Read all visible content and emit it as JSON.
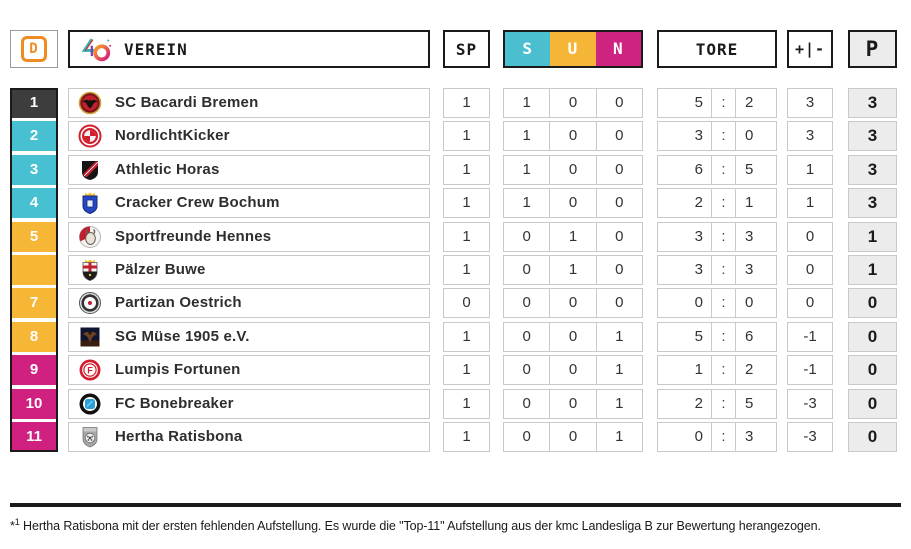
{
  "header": {
    "d_label": "D",
    "verein_label": "VEREIN",
    "sp_label": "SP",
    "s_label": "S",
    "u_label": "U",
    "n_label": "N",
    "tore_label": "TORE",
    "diff_label": "+|-",
    "p_label": "P"
  },
  "colors": {
    "rank_dark": "#3d3d3d",
    "rank_cyan": "#47c1d2",
    "rank_yellow": "#f6b636",
    "rank_magenta": "#d02080",
    "header_s": "#4bbfcf",
    "header_u": "#f5b637",
    "header_n": "#ce2380",
    "accent_orange": "#ee8b22",
    "points_bg": "#ececec"
  },
  "rows": [
    {
      "rank": "1",
      "tier": "dark",
      "club": "SC Bacardi Bremen",
      "icon": "bacardi-bat-crest",
      "sp": "1",
      "s": "1",
      "u": "0",
      "n": "0",
      "gf": "5",
      "ga": "2",
      "diff": "3",
      "points": "3"
    },
    {
      "rank": "2",
      "tier": "cyan",
      "club": "NordlichtKicker",
      "icon": "red-white-roundel",
      "sp": "1",
      "s": "1",
      "u": "0",
      "n": "0",
      "gf": "3",
      "ga": "0",
      "diff": "3",
      "points": "3"
    },
    {
      "rank": "3",
      "tier": "cyan",
      "club": "Athletic Horas",
      "icon": "black-red-shield",
      "sp": "1",
      "s": "1",
      "u": "0",
      "n": "0",
      "gf": "6",
      "ga": "5",
      "diff": "1",
      "points": "3"
    },
    {
      "rank": "4",
      "tier": "cyan",
      "club": "Cracker Crew Bochum",
      "icon": "blue-crown-shield",
      "sp": "1",
      "s": "1",
      "u": "0",
      "n": "0",
      "gf": "2",
      "ga": "1",
      "diff": "1",
      "points": "3"
    },
    {
      "rank": "5",
      "tier": "yellow",
      "club": "Sportfreunde Hennes",
      "icon": "goat-roundel",
      "sp": "1",
      "s": "0",
      "u": "1",
      "n": "0",
      "gf": "3",
      "ga": "3",
      "diff": "0",
      "points": "1"
    },
    {
      "rank": "",
      "tier": "yellow",
      "club": "Pälzer Buwe",
      "icon": "red-cross-shield",
      "sp": "1",
      "s": "0",
      "u": "1",
      "n": "0",
      "gf": "3",
      "ga": "3",
      "diff": "0",
      "points": "1"
    },
    {
      "rank": "7",
      "tier": "yellow",
      "club": "Partizan Oestrich",
      "icon": "black-white-roundel",
      "sp": "0",
      "s": "0",
      "u": "0",
      "n": "0",
      "gf": "0",
      "ga": "0",
      "diff": "0",
      "points": "0"
    },
    {
      "rank": "8",
      "tier": "yellow",
      "club": "SG Müse 1905 e.V.",
      "icon": "dark-moth-square",
      "sp": "1",
      "s": "0",
      "u": "0",
      "n": "1",
      "gf": "5",
      "ga": "6",
      "diff": "-1",
      "points": "0"
    },
    {
      "rank": "9",
      "tier": "magenta",
      "club": "Lumpis Fortunen",
      "icon": "red-f-roundel",
      "sp": "1",
      "s": "0",
      "u": "0",
      "n": "1",
      "gf": "1",
      "ga": "2",
      "diff": "-1",
      "points": "0"
    },
    {
      "rank": "10",
      "tier": "magenta",
      "club": "FC Bonebreaker",
      "icon": "blue-square-roundel",
      "sp": "1",
      "s": "0",
      "u": "0",
      "n": "1",
      "gf": "2",
      "ga": "5",
      "diff": "-3",
      "points": "0"
    },
    {
      "rank": "11",
      "tier": "magenta",
      "club": "Hertha Ratisbona",
      "icon": "grey-football-shield",
      "sp": "1",
      "s": "0",
      "u": "0",
      "n": "1",
      "gf": "0",
      "ga": "3",
      "diff": "-3",
      "points": "0"
    }
  ],
  "footnote": {
    "marker": "*",
    "sup": "1",
    "text": "Hertha Ratisbona mit der ersten fehlenden Aufstellung. Es wurde die \"Top-11\" Aufstellung aus der kmc Landesliga B zur Bewertung herangezogen."
  }
}
